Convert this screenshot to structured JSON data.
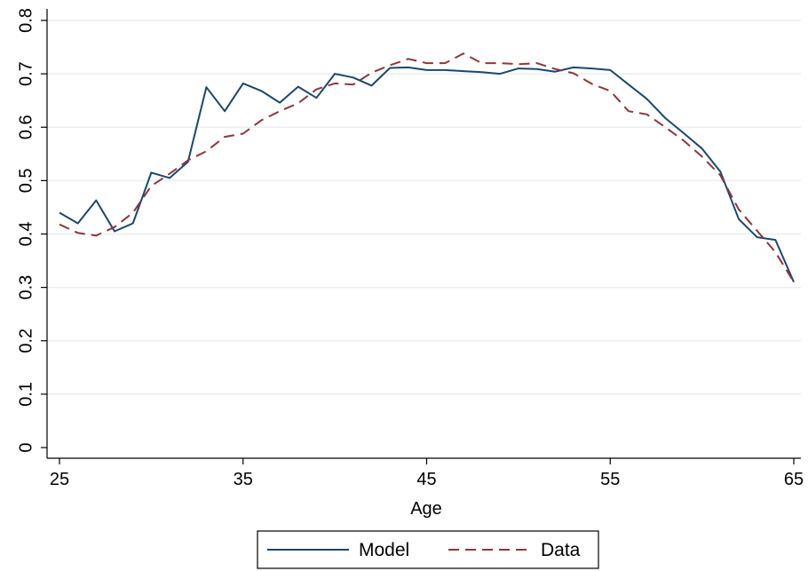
{
  "chart_data": {
    "type": "line",
    "xlabel": "Age",
    "ylabel": "",
    "xlim": [
      25,
      65
    ],
    "ylim": [
      0,
      0.8
    ],
    "x_ticks": [
      25,
      35,
      45,
      55,
      65
    ],
    "y_ticks": [
      0,
      0.1,
      0.2,
      0.3,
      0.4,
      0.5,
      0.6,
      0.7,
      0.8
    ],
    "x_tick_labels": [
      "25",
      "35",
      "45",
      "55",
      "65"
    ],
    "y_tick_labels": [
      "0",
      "0.1",
      "0.2",
      "0.3",
      "0.4",
      "0.5",
      "0.6",
      "0.7",
      "0.8"
    ],
    "grid": "horizontal",
    "legend_placement": "bottom",
    "x": [
      25,
      26,
      27,
      28,
      29,
      30,
      31,
      32,
      33,
      34,
      35,
      36,
      37,
      38,
      39,
      40,
      41,
      42,
      43,
      44,
      45,
      46,
      47,
      48,
      49,
      50,
      51,
      52,
      53,
      54,
      55,
      56,
      57,
      58,
      59,
      60,
      61,
      62,
      63,
      64,
      65
    ],
    "series": [
      {
        "name": "Model",
        "color": "#1a476f",
        "dash": "solid",
        "values": [
          0.44,
          0.42,
          0.463,
          0.405,
          0.42,
          0.515,
          0.505,
          0.535,
          0.675,
          0.63,
          0.682,
          0.668,
          0.646,
          0.676,
          0.655,
          0.7,
          0.693,
          0.678,
          0.711,
          0.712,
          0.707,
          0.707,
          0.705,
          0.703,
          0.7,
          0.71,
          0.709,
          0.704,
          0.712,
          0.71,
          0.707,
          0.68,
          0.653,
          0.617,
          0.589,
          0.56,
          0.517,
          0.428,
          0.394,
          0.389,
          0.31
        ]
      },
      {
        "name": "Data",
        "color": "#90353b",
        "dash": "dashed",
        "values": [
          0.418,
          0.402,
          0.397,
          0.413,
          0.44,
          0.49,
          0.513,
          0.538,
          0.555,
          0.582,
          0.588,
          0.613,
          0.63,
          0.645,
          0.671,
          0.682,
          0.68,
          0.702,
          0.716,
          0.728,
          0.72,
          0.72,
          0.738,
          0.72,
          0.72,
          0.718,
          0.72,
          0.709,
          0.701,
          0.681,
          0.668,
          0.63,
          0.624,
          0.6,
          0.575,
          0.545,
          0.51,
          0.446,
          0.406,
          0.366,
          0.31
        ]
      }
    ]
  }
}
